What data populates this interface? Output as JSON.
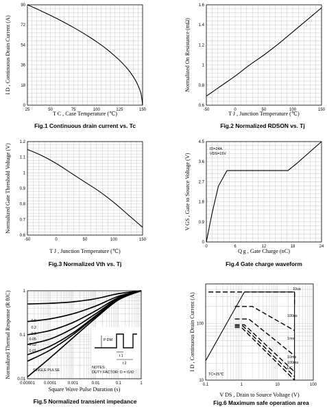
{
  "chart_data": [
    {
      "type": "line",
      "caption": "Fig.1  Continuous drain current vs. Tc",
      "xlabel": "T C , Case Temperature (℃)",
      "ylabel": "I D , Continuous Drain Current (A)",
      "xlim": [
        25,
        150
      ],
      "ylim": [
        0,
        90
      ],
      "xticks": [
        25,
        50,
        75,
        100,
        125,
        150
      ],
      "yticks": [
        0,
        18,
        36,
        54,
        72,
        90
      ],
      "grid": true,
      "series": [
        {
          "x": [
            25,
            35,
            50,
            62.5,
            75,
            87.5,
            100,
            112.5,
            125,
            135,
            142,
            146,
            148.5,
            150
          ],
          "y": [
            90,
            86.4,
            80.5,
            75.3,
            69.7,
            63.6,
            56.9,
            49.3,
            40.2,
            31.2,
            22.7,
            15.8,
            9.5,
            0
          ]
        }
      ]
    },
    {
      "type": "line",
      "caption": "Fig.2  Normalized RDSON vs. Tj",
      "xlabel": "T J , Junction Temperature (℃)",
      "ylabel": "Normalized On Resistance (mΩ)",
      "xlim": [
        -50,
        150
      ],
      "ylim": [
        0.6,
        1.6
      ],
      "xticks": [
        -50,
        0,
        50,
        100,
        150
      ],
      "yticks": [
        0.6,
        0.8,
        1,
        1.2,
        1.4,
        1.6
      ],
      "ytick_labels": [
        "0.6",
        "0.8",
        "1",
        "1.2",
        "1.4",
        "1.6"
      ],
      "grid": true,
      "series": [
        {
          "x": [
            -50,
            -25,
            0,
            25,
            50,
            75,
            100,
            125,
            150
          ],
          "y": [
            0.69,
            0.79,
            0.89,
            1.0,
            1.1,
            1.21,
            1.33,
            1.45,
            1.57
          ]
        }
      ]
    },
    {
      "type": "line",
      "caption": "Fig.3 Normalized Vth vs. Tj",
      "xlabel": "T J , Junction Temperature (℃)",
      "ylabel": "Normalized Gate Threshold Voltage (V)",
      "xlim": [
        -50,
        150
      ],
      "ylim": [
        0.6,
        1.2
      ],
      "xticks": [
        -50,
        0,
        50,
        100,
        150
      ],
      "yticks": [
        0.6,
        0.7,
        0.8,
        0.9,
        1,
        1.1,
        1.2
      ],
      "ytick_labels": [
        "0.6",
        "0.7",
        "0.8",
        "0.9",
        "1",
        "1.1",
        "1.2"
      ],
      "grid": true,
      "series": [
        {
          "x": [
            -50,
            -25,
            0,
            25,
            50,
            75,
            100,
            125,
            150
          ],
          "y": [
            1.15,
            1.11,
            1.06,
            1.0,
            0.94,
            0.88,
            0.81,
            0.73,
            0.65
          ]
        }
      ]
    },
    {
      "type": "line",
      "caption": "Fig.4  Gate charge waveform",
      "xlabel": "Q g , Gate Charge (nC)",
      "ylabel": "V GS , Gate to Source Voltage (V)",
      "xlim": [
        0,
        24
      ],
      "ylim": [
        0,
        4.5
      ],
      "xticks": [
        0,
        6,
        12,
        18,
        24
      ],
      "yticks": [
        0,
        0.9,
        1.8,
        2.7,
        3.6,
        4.5
      ],
      "grid": true,
      "annotation": [
        "ID=24A",
        "VDS=15V"
      ],
      "series": [
        {
          "x": [
            0,
            1.2,
            2.5,
            4.3,
            17.0,
            19.0,
            24
          ],
          "y": [
            0,
            1.3,
            2.5,
            3.2,
            3.2,
            3.55,
            4.5
          ]
        }
      ]
    },
    {
      "type": "line",
      "caption": "Fig.5 Normalized transient impedance",
      "xlabel": "Square Wave Pulse Duration (s)",
      "ylabel": "Normalized Thermal Response (R θJC)",
      "xscale": "log",
      "yscale": "log",
      "xlim": [
        1e-05,
        1
      ],
      "ylim": [
        0.01,
        1
      ],
      "xticks": [
        1e-05,
        0.0001,
        0.001,
        0.01,
        0.1,
        1
      ],
      "xtick_labels": [
        "0.00001",
        "0.0001",
        "0.001",
        "0.01",
        "0.1",
        "1"
      ],
      "yticks": [
        0.01,
        0.1,
        1
      ],
      "ytick_labels": [
        "0.01",
        "0.1",
        "1"
      ],
      "grid": true,
      "inset_labels": {
        "pdm": "P DM",
        "t1": "t 1",
        "t2": "t 2"
      },
      "notes": [
        "NOTES:",
        "DUTY FACTOR: D = t1/t2"
      ],
      "series": [
        {
          "name": "0.5",
          "x": [
            1e-05,
            0.0001,
            0.001,
            0.01,
            0.1,
            1
          ],
          "y": [
            0.5,
            0.52,
            0.56,
            0.66,
            0.86,
            1.0
          ]
        },
        {
          "name": "0.2",
          "x": [
            1e-05,
            0.0001,
            0.001,
            0.01,
            0.1,
            1
          ],
          "y": [
            0.2,
            0.23,
            0.3,
            0.45,
            0.75,
            1.0
          ]
        },
        {
          "name": "0.1",
          "x": [
            1e-05,
            0.0001,
            0.001,
            0.01,
            0.1,
            1
          ],
          "y": [
            0.1,
            0.125,
            0.19,
            0.35,
            0.7,
            1.0
          ]
        },
        {
          "name": "0.05",
          "x": [
            1e-05,
            0.0001,
            0.001,
            0.01,
            0.1,
            1
          ],
          "y": [
            0.06,
            0.08,
            0.14,
            0.3,
            0.67,
            1.0
          ]
        },
        {
          "name": "0.02",
          "x": [
            1e-05,
            0.0001,
            0.001,
            0.01,
            0.1,
            1
          ],
          "y": [
            0.035,
            0.055,
            0.11,
            0.27,
            0.65,
            1.0
          ]
        },
        {
          "name": "0.01",
          "x": [
            1e-05,
            0.0001,
            0.001,
            0.01,
            0.1,
            1
          ],
          "y": [
            0.025,
            0.045,
            0.1,
            0.26,
            0.64,
            1.0
          ]
        },
        {
          "name": "SINGLE PULSE",
          "x": [
            1e-05,
            0.0001,
            0.001,
            0.01,
            0.1,
            1
          ],
          "y": [
            0.011,
            0.03,
            0.085,
            0.24,
            0.62,
            1.0
          ]
        }
      ]
    },
    {
      "type": "line",
      "caption": "Fig.6  Maximum safe operation area",
      "xlabel": "V DS , Drain to Source Voltage (V)",
      "ylabel": "I D , Continuous Drain Current (A)",
      "xscale": "log",
      "yscale": "log",
      "xlim": [
        0.1,
        100
      ],
      "ylim": [
        10,
        500
      ],
      "xticks": [
        0.1,
        1,
        10,
        100
      ],
      "xtick_labels": [
        "0.1",
        "1",
        "10",
        "100"
      ],
      "yticks": [
        10,
        100
      ],
      "ytick_labels": [
        "10",
        "100"
      ],
      "grid": true,
      "annotation": "TC=25℃",
      "series": [
        {
          "name": "10us",
          "x": [
            0.12,
            1.2,
            30,
            30
          ],
          "y": [
            360,
            360,
            360,
            200
          ]
        },
        {
          "name": "100us",
          "x": [
            0.65,
            2.0,
            30
          ],
          "y": [
            200,
            200,
            75
          ]
        },
        {
          "name": "1ms",
          "x": [
            0.65,
            1.6,
            30
          ],
          "y": [
            120,
            120,
            27
          ]
        },
        {
          "name": "10ms",
          "x": [
            0.65,
            1.2,
            30
          ],
          "y": [
            95,
            95,
            14
          ]
        },
        {
          "name": "100ms",
          "x": [
            0.65,
            1.1,
            30
          ],
          "y": [
            90,
            90,
            11.5
          ]
        },
        {
          "name": "DC",
          "x": [
            0.65,
            1.0,
            30
          ],
          "y": [
            85,
            85,
            10
          ]
        },
        {
          "name": "limit",
          "x": [
            0.1,
            1.2,
            30,
            30
          ],
          "y": [
            22,
            360,
            360,
            10
          ]
        }
      ]
    }
  ]
}
